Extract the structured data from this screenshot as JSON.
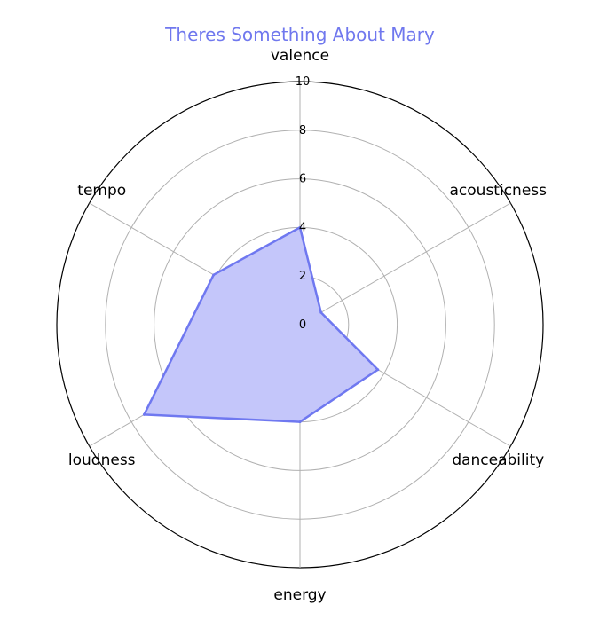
{
  "chart_data": {
    "type": "radar",
    "title": "Theres Something About Mary",
    "title_color": "#7078ee",
    "series_color": "#6f78f0",
    "fill_color": "#c4c6fa",
    "grid": true,
    "rlim": [
      0,
      10
    ],
    "rticks": [
      "0",
      "2",
      "4",
      "6",
      "8",
      "10"
    ],
    "rtick_values": [
      0,
      2,
      4,
      6,
      8,
      10
    ],
    "categories": [
      "valence",
      "acousticness",
      "danceability",
      "energy",
      "loudness",
      "tempo"
    ],
    "values": [
      4.0,
      1.0,
      3.7,
      4.0,
      7.4,
      4.1
    ]
  }
}
